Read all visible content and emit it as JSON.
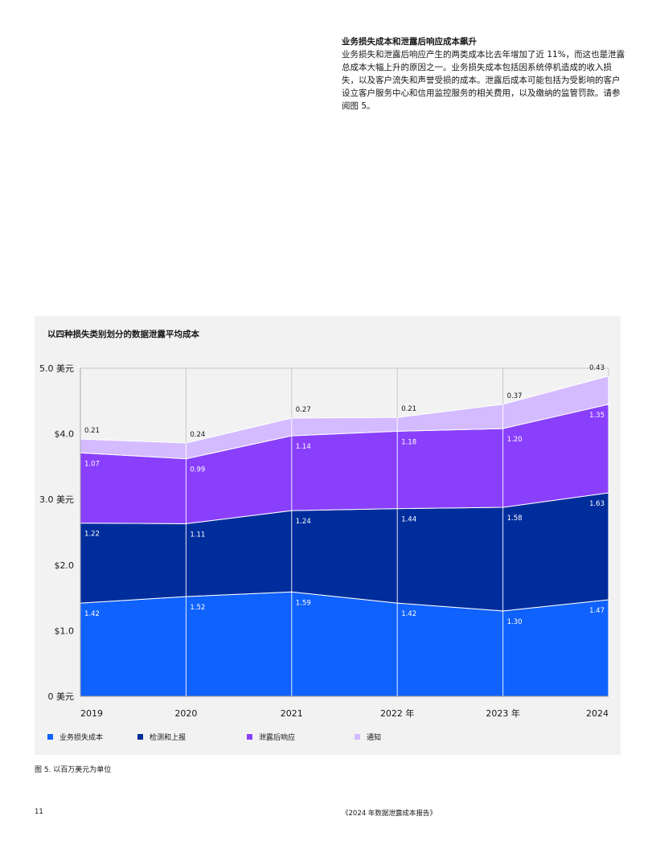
{
  "intro": {
    "title": "业务损失成本和泄露后响应成本飙升",
    "body": "业务损失和泄露后响应产生的两类成本比去年增加了近 11%，而这也是泄露总成本大幅上升的原因之一。业务损失成本包括因系统停机造成的收入损失，以及客户流失和声誉受损的成本。泄露后成本可能包括为受影响的客户设立客户服务中心和信用监控服务的相关费用，以及缴纳的监管罚款。请参阅图 5。"
  },
  "chart_data": {
    "type": "area",
    "stacked": true,
    "title": "以四种损失类别划分的数据泄露平均成本",
    "categories": [
      "2019",
      "2020",
      "2021",
      "2022 年",
      "2023 年",
      "2024"
    ],
    "y_tick_labels": [
      "0 美元",
      "$1.0",
      "$2.0",
      "3.0 美元",
      "$4.0",
      "5.0 美元"
    ],
    "ylim": [
      0,
      5
    ],
    "grid": "vertical",
    "legend_position": "bottom",
    "series": [
      {
        "name": "业务损失成本",
        "color": "#0f62fe",
        "values": [
          1.42,
          1.52,
          1.59,
          1.42,
          1.3,
          1.47
        ],
        "labels": [
          "1.42",
          "1.52",
          "1.59",
          "1.42",
          "1.30",
          "1.47"
        ]
      },
      {
        "name": "检测和上报",
        "color": "#002d9c",
        "values": [
          1.22,
          1.11,
          1.24,
          1.44,
          1.58,
          1.63
        ],
        "labels": [
          "1.22",
          "1.11",
          "1.24",
          "1.44",
          "1.58",
          "1.63"
        ]
      },
      {
        "name": "泄露后响应",
        "color": "#8a3ffc",
        "values": [
          1.07,
          0.99,
          1.14,
          1.18,
          1.2,
          1.35
        ],
        "labels": [
          "1.07",
          "0.99",
          "1.14",
          "1.18",
          "1.20",
          "1.35"
        ]
      },
      {
        "name": "通知",
        "color": "#d4bbff",
        "values": [
          0.21,
          0.24,
          0.27,
          0.21,
          0.37,
          0.43
        ],
        "labels": [
          "0.21",
          "0.24",
          "0.27",
          "0.21",
          "0.37",
          "0.43"
        ]
      }
    ]
  },
  "caption": "图 5. 以百万美元为单位",
  "footer": {
    "page_number": "11",
    "report_title": "《2024 年数据泄露成本报告》"
  }
}
